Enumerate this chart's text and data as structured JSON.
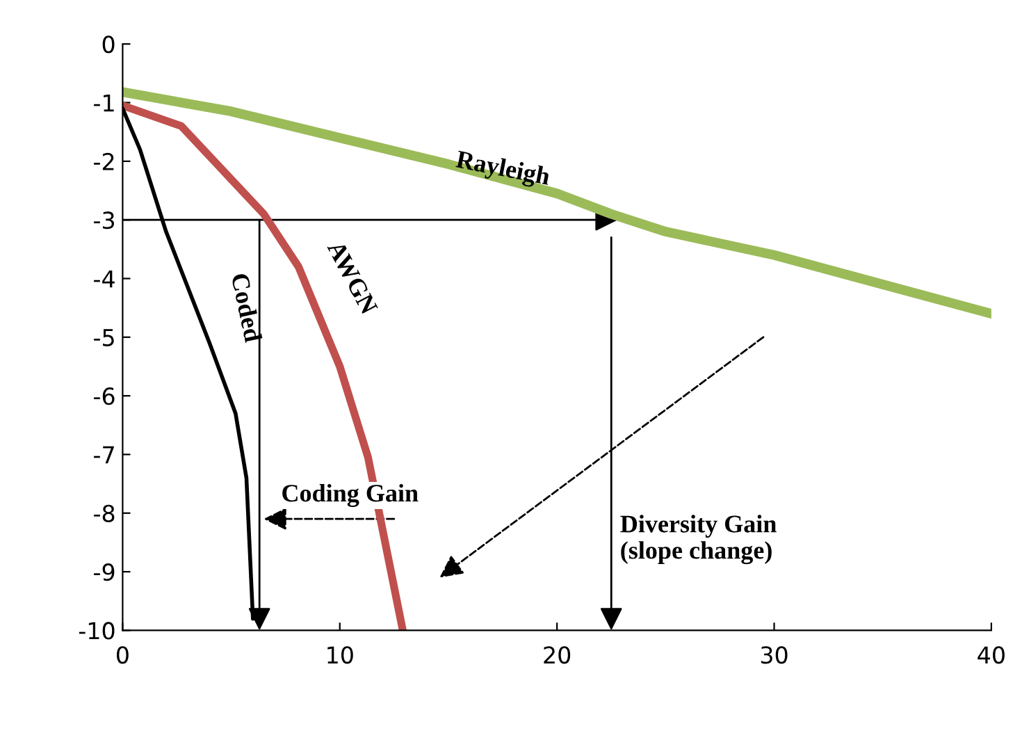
{
  "chart_data": {
    "type": "line",
    "series": [
      {
        "name": "Rayleigh",
        "color": "#9bbb59",
        "x": [
          0,
          5,
          10,
          15,
          20,
          22.5,
          25,
          30,
          35,
          40
        ],
        "values": [
          -0.82,
          -1.15,
          -1.6,
          -2.05,
          -2.55,
          -2.9,
          -3.2,
          -3.6,
          -4.1,
          -4.6
        ]
      },
      {
        "name": "AWGN",
        "color": "#c0504d",
        "x": [
          0,
          2.7,
          4.6,
          6.5,
          8.1,
          10,
          11.3,
          12.9
        ],
        "values": [
          -1.05,
          -1.4,
          -2.15,
          -2.9,
          -3.8,
          -5.5,
          -7.05,
          -10
        ]
      },
      {
        "name": "Coded",
        "color": "#000000",
        "x": [
          0,
          0.8,
          2,
          4,
          5.2,
          5.7,
          6
        ],
        "values": [
          -1.1,
          -1.8,
          -3.2,
          -5.1,
          -6.3,
          -7.4,
          -9.8
        ]
      }
    ],
    "annotations": [
      "Coding Gain",
      "Diversity Gain\n(slope change)"
    ],
    "xlim": [
      0,
      40
    ],
    "xticks": [
      0,
      10,
      20,
      30,
      40
    ],
    "ylim": [
      -10,
      0
    ],
    "yticks": [
      0,
      -1,
      -2,
      -3,
      -4,
      -5,
      -6,
      -7,
      -8,
      -9,
      -10
    ],
    "grid": false,
    "legend": false,
    "marker": "none",
    "line_style": "solid"
  }
}
